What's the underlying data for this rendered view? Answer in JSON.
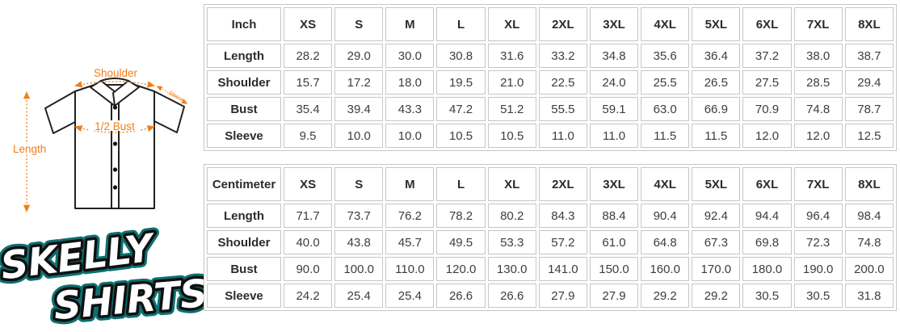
{
  "diagram": {
    "labels": {
      "shoulder": "Shoulder",
      "bust": "1/2 Bust",
      "length": "Length",
      "sleeve": "Sleeve"
    }
  },
  "logo": {
    "line1": "SKELLY",
    "line2": "SHIRTS"
  },
  "tables": [
    {
      "unit_header": "Inch",
      "size_headers": [
        "XS",
        "S",
        "M",
        "L",
        "XL",
        "2XL",
        "3XL",
        "4XL",
        "5XL",
        "6XL",
        "7XL",
        "8XL"
      ],
      "rows": [
        {
          "label": "Length",
          "values": [
            "28.2",
            "29.0",
            "30.0",
            "30.8",
            "31.6",
            "33.2",
            "34.8",
            "35.6",
            "36.4",
            "37.2",
            "38.0",
            "38.7"
          ]
        },
        {
          "label": "Shoulder",
          "values": [
            "15.7",
            "17.2",
            "18.0",
            "19.5",
            "21.0",
            "22.5",
            "24.0",
            "25.5",
            "26.5",
            "27.5",
            "28.5",
            "29.4"
          ]
        },
        {
          "label": "Bust",
          "values": [
            "35.4",
            "39.4",
            "43.3",
            "47.2",
            "51.2",
            "55.5",
            "59.1",
            "63.0",
            "66.9",
            "70.9",
            "74.8",
            "78.7"
          ]
        },
        {
          "label": "Sleeve",
          "values": [
            "9.5",
            "10.0",
            "10.0",
            "10.5",
            "10.5",
            "11.0",
            "11.0",
            "11.5",
            "11.5",
            "12.0",
            "12.0",
            "12.5"
          ]
        }
      ]
    },
    {
      "unit_header": "Centimeter",
      "size_headers": [
        "XS",
        "S",
        "M",
        "L",
        "XL",
        "2XL",
        "3XL",
        "4XL",
        "5XL",
        "6XL",
        "7XL",
        "8XL"
      ],
      "rows": [
        {
          "label": "Length",
          "values": [
            "71.7",
            "73.7",
            "76.2",
            "78.2",
            "80.2",
            "84.3",
            "88.4",
            "90.4",
            "92.4",
            "94.4",
            "96.4",
            "98.4"
          ]
        },
        {
          "label": "Shoulder",
          "values": [
            "40.0",
            "43.8",
            "45.7",
            "49.5",
            "53.3",
            "57.2",
            "61.0",
            "64.8",
            "67.3",
            "69.8",
            "72.3",
            "74.8"
          ]
        },
        {
          "label": "Bust",
          "values": [
            "90.0",
            "100.0",
            "110.0",
            "120.0",
            "130.0",
            "141.0",
            "150.0",
            "160.0",
            "170.0",
            "180.0",
            "190.0",
            "200.0"
          ]
        },
        {
          "label": "Sleeve",
          "values": [
            "24.2",
            "25.4",
            "25.4",
            "26.6",
            "26.6",
            "27.9",
            "27.9",
            "29.2",
            "29.2",
            "30.5",
            "30.5",
            "31.8"
          ]
        }
      ]
    }
  ],
  "colors": {
    "annotation_orange": "#ee7f1b",
    "logo_teal_glow": "#0d7070",
    "logo_outline": "#101010",
    "table_border": "#c6c6c6",
    "header_text": "#2b2b2b",
    "cell_text": "#3d3d3d"
  }
}
